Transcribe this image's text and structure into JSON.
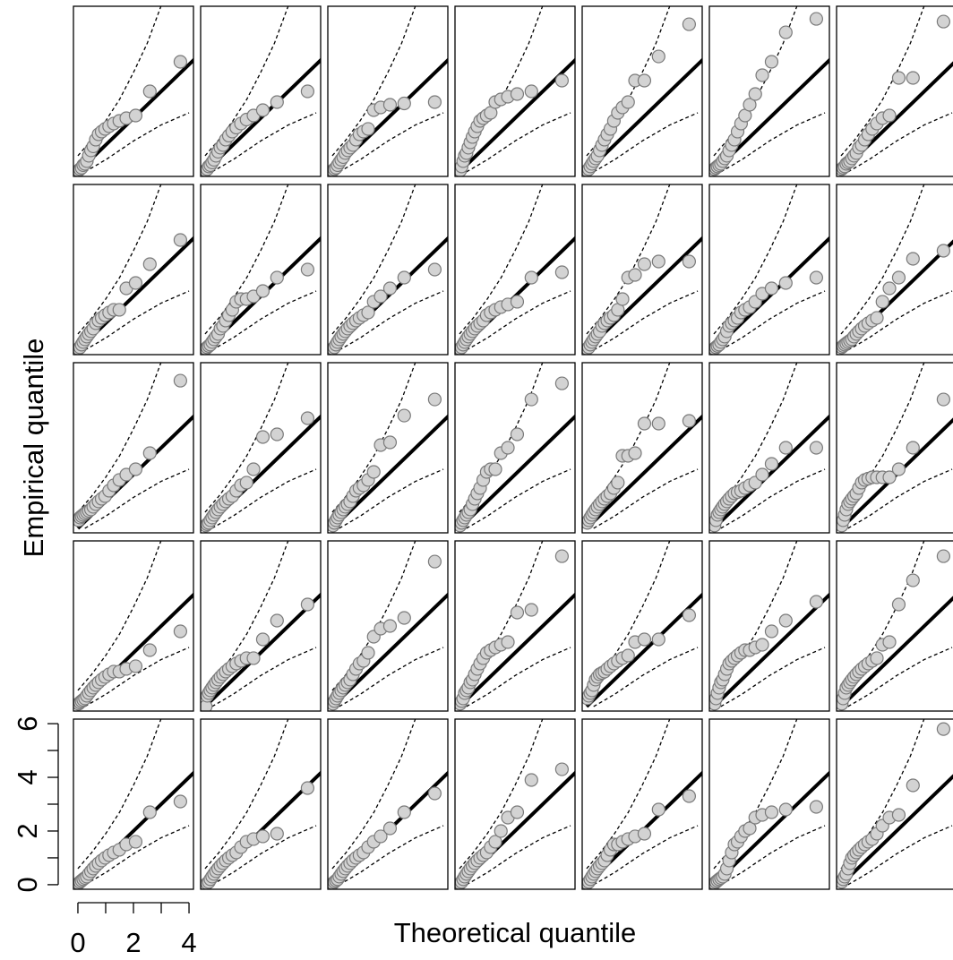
{
  "chart_data": {
    "type": "qq-grid",
    "xlabel": "Theoretical quantile",
    "ylabel": "Empirical quantile",
    "xlim": [
      -0.16,
      4.16
    ],
    "ylim": [
      -0.17,
      6.17
    ],
    "xticks": [
      0,
      2,
      4
    ],
    "xticks_unlabeled": [
      1,
      3
    ],
    "yticks": [
      0,
      2,
      4,
      6
    ],
    "yticks_unlabeled": [
      1,
      3,
      5
    ],
    "point_color": "#d3d3d3",
    "x": [
      0.025,
      0.078,
      0.134,
      0.192,
      0.255,
      0.322,
      0.393,
      0.47,
      0.553,
      0.644,
      0.744,
      0.856,
      0.981,
      1.124,
      1.291,
      1.492,
      1.743,
      2.079,
      2.59,
      3.689
    ],
    "reference_line": {
      "x": [
        0,
        4.2
      ],
      "values": [
        0,
        4.2
      ]
    },
    "upper_band": {
      "x": [
        0,
        0.5,
        1,
        1.5,
        2,
        2.5,
        3
      ],
      "values": [
        0.6,
        1.2,
        1.9,
        2.7,
        3.7,
        4.8,
        6.2
      ]
    },
    "lower_band": {
      "x": [
        0.25,
        1,
        2,
        3,
        4
      ],
      "values": [
        0,
        0.45,
        1.15,
        1.75,
        2.2
      ]
    },
    "panels": [
      {
        "values": [
          0.05,
          0.1,
          0.15,
          0.25,
          0.3,
          0.4,
          0.6,
          0.8,
          0.95,
          1.2,
          1.4,
          1.5,
          1.6,
          1.7,
          1.8,
          1.9,
          2.0,
          2.1,
          3.0,
          4.1
        ]
      },
      {
        "values": [
          0.05,
          0.1,
          0.2,
          0.25,
          0.35,
          0.45,
          0.6,
          0.75,
          0.9,
          1.0,
          1.2,
          1.35,
          1.5,
          1.65,
          1.8,
          1.95,
          2.1,
          2.3,
          2.6,
          3.0
        ]
      },
      {
        "values": [
          0.05,
          0.1,
          0.15,
          0.25,
          0.35,
          0.45,
          0.55,
          0.7,
          0.8,
          0.9,
          1.0,
          1.2,
          1.4,
          1.5,
          1.6,
          2.3,
          2.4,
          2.5,
          2.55,
          2.6
        ]
      },
      {
        "values": [
          0.05,
          0.2,
          0.4,
          0.6,
          0.7,
          0.9,
          1.1,
          1.3,
          1.5,
          1.7,
          1.9,
          2.0,
          2.1,
          2.2,
          2.6,
          2.7,
          2.8,
          2.9,
          3.0,
          3.4
        ]
      },
      {
        "values": [
          0.05,
          0.1,
          0.2,
          0.3,
          0.4,
          0.5,
          0.6,
          0.8,
          1.0,
          1.2,
          1.4,
          1.6,
          1.9,
          2.2,
          2.4,
          2.6,
          3.4,
          3.4,
          4.3,
          5.5
        ]
      },
      {
        "values": [
          0.1,
          0.15,
          0.2,
          0.25,
          0.3,
          0.4,
          0.5,
          0.6,
          0.8,
          1.0,
          1.2,
          1.5,
          1.8,
          2.1,
          2.5,
          2.9,
          3.6,
          4.1,
          5.2,
          5.7
        ]
      },
      {
        "values": [
          0.1,
          0.15,
          0.2,
          0.3,
          0.35,
          0.4,
          0.5,
          0.6,
          0.7,
          0.9,
          1.0,
          1.2,
          1.4,
          1.6,
          1.8,
          2.0,
          2.1,
          3.5,
          3.5,
          5.6
        ]
      },
      {
        "values": [
          0.05,
          0.1,
          0.2,
          0.3,
          0.4,
          0.5,
          0.6,
          0.7,
          0.8,
          1.0,
          1.1,
          1.2,
          1.3,
          1.4,
          1.5,
          1.5,
          2.3,
          2.5,
          3.2,
          4.1
        ]
      },
      {
        "values": [
          0.05,
          0.1,
          0.15,
          0.2,
          0.3,
          0.4,
          0.5,
          0.6,
          0.8,
          0.9,
          1.1,
          1.3,
          1.5,
          1.8,
          1.9,
          1.9,
          2.0,
          2.2,
          2.7,
          3.0
        ]
      },
      {
        "values": [
          0.05,
          0.1,
          0.2,
          0.3,
          0.4,
          0.5,
          0.6,
          0.7,
          0.8,
          0.9,
          1.0,
          1.1,
          1.2,
          1.3,
          1.4,
          1.8,
          2.0,
          2.3,
          2.7,
          3.0
        ]
      },
      {
        "values": [
          0.05,
          0.1,
          0.2,
          0.3,
          0.4,
          0.5,
          0.6,
          0.7,
          0.8,
          0.9,
          1.0,
          1.1,
          1.3,
          1.4,
          1.5,
          1.6,
          1.7,
          1.8,
          2.7,
          2.9
        ]
      },
      {
        "values": [
          0.05,
          0.1,
          0.2,
          0.3,
          0.4,
          0.5,
          0.6,
          0.7,
          0.9,
          1.0,
          1.1,
          1.2,
          1.3,
          1.5,
          1.9,
          2.7,
          2.8,
          3.2,
          3.3,
          3.3
        ]
      },
      {
        "values": [
          0.05,
          0.1,
          0.15,
          0.2,
          0.3,
          0.4,
          0.5,
          0.7,
          0.9,
          1.0,
          1.1,
          1.2,
          1.4,
          1.5,
          1.6,
          1.8,
          2.1,
          2.3,
          2.5,
          2.7
        ]
      },
      {
        "values": [
          0.1,
          0.15,
          0.2,
          0.25,
          0.3,
          0.35,
          0.4,
          0.5,
          0.6,
          0.7,
          0.8,
          0.9,
          1.0,
          1.1,
          1.2,
          1.8,
          2.3,
          2.7,
          3.4,
          3.7
        ]
      },
      {
        "values": [
          0.3,
          0.4,
          0.45,
          0.5,
          0.55,
          0.6,
          0.65,
          0.7,
          0.8,
          0.9,
          1.0,
          1.1,
          1.2,
          1.4,
          1.6,
          1.8,
          2.0,
          2.2,
          2.8,
          5.5
        ]
      },
      {
        "values": [
          0.1,
          0.15,
          0.2,
          0.3,
          0.4,
          0.5,
          0.6,
          0.7,
          0.8,
          0.9,
          1.0,
          1.1,
          1.2,
          1.4,
          1.6,
          1.7,
          2.2,
          3.4,
          3.5,
          4.1
        ]
      },
      {
        "values": [
          0.1,
          0.2,
          0.3,
          0.4,
          0.5,
          0.6,
          0.7,
          0.8,
          0.9,
          1.0,
          1.2,
          1.4,
          1.5,
          1.6,
          1.8,
          2.1,
          3.1,
          3.2,
          4.2,
          4.8
        ]
      },
      {
        "values": [
          0.1,
          0.2,
          0.3,
          0.4,
          0.5,
          0.6,
          0.7,
          0.9,
          1.1,
          1.3,
          1.5,
          1.8,
          2.1,
          2.2,
          2.2,
          2.8,
          3.0,
          3.5,
          4.8,
          5.4
        ]
      },
      {
        "values": [
          0.2,
          0.3,
          0.4,
          0.5,
          0.6,
          0.7,
          0.8,
          0.9,
          1.0,
          1.1,
          1.2,
          1.3,
          1.5,
          1.7,
          2.7,
          2.7,
          2.8,
          3.9,
          3.9,
          4.0
        ]
      },
      {
        "values": [
          0.1,
          0.3,
          0.5,
          0.6,
          0.7,
          0.8,
          0.9,
          1.0,
          1.1,
          1.2,
          1.3,
          1.35,
          1.4,
          1.5,
          1.6,
          1.7,
          2.0,
          2.4,
          3.0,
          3.0
        ]
      },
      {
        "values": [
          0.1,
          0.3,
          0.5,
          0.7,
          0.9,
          1.0,
          1.1,
          1.2,
          1.3,
          1.5,
          1.7,
          1.8,
          1.85,
          1.9,
          1.9,
          1.9,
          1.9,
          2.2,
          3.0,
          4.8
        ]
      },
      {
        "values": [
          0.1,
          0.15,
          0.2,
          0.25,
          0.3,
          0.4,
          0.5,
          0.6,
          0.7,
          0.8,
          0.9,
          1.0,
          1.1,
          1.2,
          1.3,
          1.3,
          1.4,
          1.5,
          2.1,
          2.8
        ]
      },
      {
        "values": [
          0.0,
          0.4,
          0.5,
          0.6,
          0.7,
          0.8,
          0.9,
          1.0,
          1.1,
          1.2,
          1.3,
          1.4,
          1.5,
          1.6,
          1.7,
          1.8,
          1.8,
          2.5,
          3.2,
          3.8
        ]
      },
      {
        "values": [
          0.1,
          0.2,
          0.3,
          0.4,
          0.5,
          0.6,
          0.7,
          0.8,
          0.9,
          1.0,
          1.2,
          1.4,
          1.6,
          1.7,
          2.0,
          2.6,
          2.9,
          3.0,
          3.3,
          5.4
        ]
      },
      {
        "values": [
          0.1,
          0.2,
          0.3,
          0.5,
          0.6,
          0.7,
          0.9,
          1.0,
          1.2,
          1.4,
          1.6,
          1.8,
          2.0,
          2.1,
          2.2,
          2.3,
          2.4,
          3.5,
          3.6,
          5.6
        ]
      },
      {
        "values": [
          0.3,
          0.4,
          0.5,
          0.6,
          0.8,
          1.0,
          1.1,
          1.2,
          1.25,
          1.3,
          1.4,
          1.5,
          1.6,
          1.7,
          1.8,
          1.9,
          2.4,
          2.5,
          2.5,
          3.4
        ]
      },
      {
        "values": [
          0.1,
          0.3,
          0.5,
          0.7,
          0.9,
          1.0,
          1.2,
          1.4,
          1.6,
          1.7,
          1.8,
          1.9,
          2.0,
          2.1,
          2.1,
          2.2,
          2.3,
          2.8,
          3.2,
          3.9
        ]
      },
      {
        "values": [
          0.1,
          0.3,
          0.5,
          0.7,
          0.8,
          0.9,
          1.0,
          1.1,
          1.2,
          1.3,
          1.4,
          1.5,
          1.6,
          1.7,
          1.8,
          2.3,
          2.4,
          3.8,
          4.7,
          5.6
        ]
      },
      {
        "values": [
          0.05,
          0.1,
          0.15,
          0.2,
          0.25,
          0.3,
          0.4,
          0.5,
          0.6,
          0.7,
          0.8,
          0.9,
          1.0,
          1.1,
          1.2,
          1.3,
          1.5,
          1.6,
          2.7,
          3.1
        ]
      },
      {
        "values": [
          0.0,
          0.05,
          0.1,
          0.2,
          0.3,
          0.4,
          0.5,
          0.6,
          0.7,
          0.8,
          0.9,
          1.0,
          1.1,
          1.2,
          1.4,
          1.6,
          1.7,
          1.8,
          1.9,
          3.6
        ]
      },
      {
        "values": [
          0.05,
          0.1,
          0.15,
          0.2,
          0.3,
          0.4,
          0.5,
          0.6,
          0.7,
          0.8,
          0.9,
          1.0,
          1.1,
          1.2,
          1.4,
          1.6,
          1.8,
          2.1,
          2.7,
          3.4
        ]
      },
      {
        "values": [
          0.05,
          0.1,
          0.2,
          0.3,
          0.4,
          0.5,
          0.6,
          0.7,
          0.8,
          0.9,
          1.0,
          1.1,
          1.2,
          1.4,
          1.6,
          2.0,
          2.5,
          2.7,
          3.9,
          4.3
        ]
      },
      {
        "values": [
          0.05,
          0.1,
          0.2,
          0.3,
          0.4,
          0.5,
          0.6,
          0.7,
          0.8,
          0.9,
          1.1,
          1.3,
          1.5,
          1.5,
          1.6,
          1.7,
          1.8,
          1.9,
          2.8,
          3.3
        ]
      },
      {
        "values": [
          0.05,
          0.1,
          0.15,
          0.2,
          0.25,
          0.3,
          0.4,
          0.6,
          0.9,
          1.2,
          1.5,
          1.6,
          1.8,
          2.0,
          2.1,
          2.5,
          2.6,
          2.7,
          2.8,
          2.9
        ]
      },
      {
        "values": [
          0.1,
          0.2,
          0.3,
          0.4,
          0.6,
          0.8,
          1.0,
          1.1,
          1.2,
          1.3,
          1.4,
          1.5,
          1.6,
          1.7,
          1.9,
          2.2,
          2.5,
          2.6,
          3.7,
          5.8
        ]
      }
    ]
  }
}
